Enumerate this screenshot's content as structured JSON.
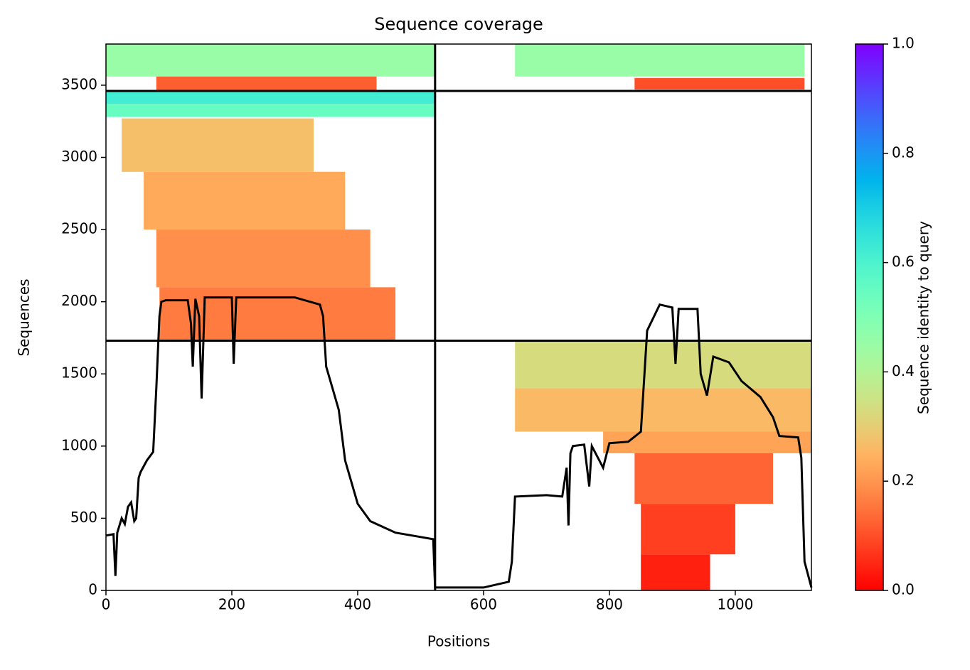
{
  "chart_data": {
    "type": "coverage",
    "title": "Sequence coverage",
    "x_label": "Positions",
    "y_label": "Sequences",
    "colorbar_label": "Sequence identity to query",
    "colormap": "rainbow_r",
    "xlim": [
      0,
      1121
    ],
    "xticks": [
      0,
      200,
      400,
      600,
      800,
      1000
    ],
    "ylim": [
      0,
      3785
    ],
    "yticks": [
      0,
      500,
      1000,
      1500,
      2000,
      2500,
      3000,
      3500
    ],
    "clim": [
      0,
      1
    ],
    "cticks": [
      {
        "value": 0,
        "label": "0.0"
      },
      {
        "value": 0.2,
        "label": "0.2"
      },
      {
        "value": 0.4,
        "label": "0.4"
      },
      {
        "value": 0.6,
        "label": "0.6"
      },
      {
        "value": 0.8,
        "label": "0.8"
      },
      {
        "value": 1,
        "label": "1.0"
      }
    ],
    "dividers": {
      "x": [
        523
      ],
      "y": [
        1730,
        3460
      ]
    },
    "blocks": [
      {
        "x": [
          0,
          523
        ],
        "y": [
          3560,
          3785
        ],
        "identity": 0.45
      },
      {
        "x": [
          80,
          430
        ],
        "y": [
          3460,
          3560
        ],
        "identity": 0.12
      },
      {
        "x": [
          650,
          1110
        ],
        "y": [
          3560,
          3785
        ],
        "identity": 0.45
      },
      {
        "x": [
          840,
          1110
        ],
        "y": [
          3470,
          3550
        ],
        "identity": 0.1
      },
      {
        "x": [
          0,
          523
        ],
        "y": [
          3370,
          3460
        ],
        "identity": 0.62
      },
      {
        "x": [
          0,
          523
        ],
        "y": [
          3280,
          3370
        ],
        "identity": 0.55
      },
      {
        "x": [
          25,
          330
        ],
        "y": [
          2900,
          3270
        ],
        "identity": 0.27
      },
      {
        "x": [
          60,
          380
        ],
        "y": [
          2500,
          2900
        ],
        "identity": 0.23
      },
      {
        "x": [
          80,
          420
        ],
        "y": [
          2100,
          2500
        ],
        "identity": 0.19
      },
      {
        "x": [
          85,
          460
        ],
        "y": [
          1730,
          2100
        ],
        "identity": 0.16
      },
      {
        "x": [
          650,
          1120
        ],
        "y": [
          1400,
          1730
        ],
        "identity": 0.33
      },
      {
        "x": [
          650,
          1120
        ],
        "y": [
          1100,
          1400
        ],
        "identity": 0.26
      },
      {
        "x": [
          790,
          1120
        ],
        "y": [
          950,
          1100
        ],
        "identity": 0.22
      },
      {
        "x": [
          840,
          1060
        ],
        "y": [
          600,
          950
        ],
        "identity": 0.13
      },
      {
        "x": [
          850,
          1000
        ],
        "y": [
          250,
          600
        ],
        "identity": 0.08
      },
      {
        "x": [
          850,
          960
        ],
        "y": [
          0,
          250
        ],
        "identity": 0.04
      }
    ],
    "coverage": {
      "color": "#000000",
      "x": [
        0,
        12,
        15,
        18,
        25,
        30,
        35,
        40,
        45,
        48,
        52,
        55,
        65,
        75,
        80,
        85,
        88,
        95,
        130,
        135,
        138,
        142,
        148,
        152,
        157,
        200,
        203,
        207,
        300,
        340,
        345,
        350,
        360,
        370,
        380,
        400,
        420,
        460,
        500,
        520,
        523,
        600,
        640,
        645,
        650,
        700,
        725,
        732,
        735,
        738,
        742,
        760,
        768,
        772,
        790,
        800,
        830,
        850,
        860,
        880,
        900,
        905,
        910,
        940,
        945,
        955,
        965,
        990,
        1010,
        1040,
        1060,
        1070,
        1100,
        1105,
        1110,
        1121
      ],
      "values": [
        380,
        390,
        100,
        400,
        500,
        460,
        580,
        610,
        480,
        500,
        780,
        820,
        900,
        960,
        1400,
        1900,
        2000,
        2010,
        2010,
        1850,
        1550,
        2020,
        1900,
        1330,
        2030,
        2030,
        1570,
        2030,
        2030,
        1980,
        1900,
        1550,
        1400,
        1250,
        900,
        600,
        480,
        400,
        370,
        355,
        20,
        20,
        60,
        200,
        650,
        660,
        650,
        850,
        450,
        950,
        1000,
        1010,
        720,
        1000,
        850,
        1020,
        1030,
        1100,
        1800,
        1980,
        1960,
        1570,
        1950,
        1950,
        1500,
        1350,
        1620,
        1580,
        1450,
        1340,
        1200,
        1070,
        1060,
        920,
        200,
        20
      ]
    }
  }
}
